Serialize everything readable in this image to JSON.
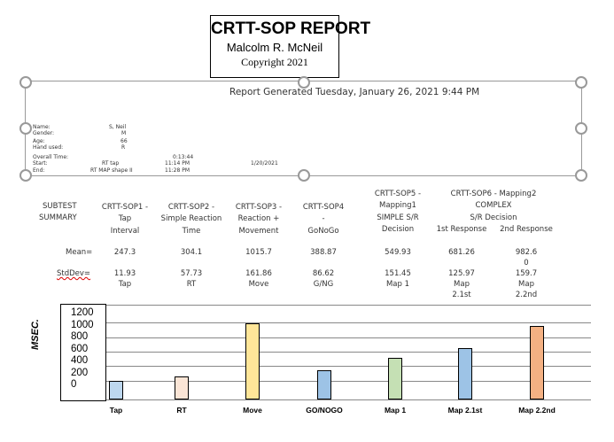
{
  "title": {
    "heading": "CRTT-SOP REPORT",
    "author": "Malcolm R. McNeil",
    "copyright": "Copyright 2021"
  },
  "generated": "Report Generated Tuesday, January 26, 2021 9:44 PM",
  "patient": {
    "name_label": "Name:",
    "name": "S, Neil",
    "gender_label": "Gender:",
    "gender": "M",
    "age_label": "Age:",
    "age": "66",
    "hand_label": "Hand used:",
    "hand": "R",
    "overall_label": "Overall Time:",
    "overall": "0:13:44",
    "start_label": "Start:",
    "start_test": "RT tap",
    "start_time": "11:14 PM",
    "start_date": "1/20/2021",
    "end_label": "End:",
    "end_test": "RT MAP shape II",
    "end_time": "11:28 PM"
  },
  "summary": {
    "label_lines": [
      "SUBTEST",
      "SUMMARY"
    ],
    "mean_label": "Mean=",
    "std_label": "StdDev=",
    "columns": [
      {
        "header": [
          "CRTT-SOP1 -",
          "Tap",
          "Interval"
        ],
        "mean": "247.3",
        "std": "11.93",
        "abbr": "Tap"
      },
      {
        "header": [
          "CRTT-SOP2 -",
          "Simple Reaction",
          "Time"
        ],
        "mean": "304.1",
        "std": "57.73",
        "abbr": "RT"
      },
      {
        "header": [
          "CRTT-SOP3 -",
          "Reaction +",
          "Movement"
        ],
        "mean": "1015.7",
        "std": "161.86",
        "abbr": "Move"
      },
      {
        "header": [
          "CRTT-SOP4",
          "-",
          "GoNoGo"
        ],
        "mean": "388.87",
        "std": "86.62",
        "abbr": "G/NG"
      },
      {
        "header": [
          "CRTT-SOP5 -",
          "Mapping1",
          "SIMPLE       S/R",
          "Decision"
        ],
        "mean": "549.93",
        "std": "151.45",
        "abbr": "Map 1"
      },
      {
        "header": [
          "1st Response"
        ],
        "mean": "681.26",
        "std": "125.97",
        "abbr": "Map",
        "abbr2": "2.1st"
      },
      {
        "header": [
          "2nd Response"
        ],
        "mean": "982.6",
        "mean2": "0",
        "std": "159.7",
        "abbr": "Map",
        "abbr2": "2.2nd"
      }
    ],
    "group_header": [
      "CRTT-SOP6 - Mapping2",
      "COMPLEX",
      "S/R Decision"
    ]
  },
  "chart_data": {
    "type": "bar",
    "ylabel": "MSEC.",
    "categories": [
      "Tap",
      "RT",
      "Move",
      "GO/NOGO",
      "Map 1",
      "Map 2.1st",
      "Map 2.2nd"
    ],
    "values": [
      247.3,
      304.1,
      1015.7,
      388.87,
      549.93,
      681.26,
      982.6
    ],
    "colors": [
      "#bdd7ee",
      "#fbe5d6",
      "#ffe699",
      "#9dc3e6",
      "#c5e0b4",
      "#9dc3e6",
      "#f4b183"
    ],
    "yticks": [
      "1200",
      "1000",
      "800",
      "600",
      "400",
      "200",
      "0"
    ],
    "ylim": [
      0,
      1200
    ],
    "grid": true
  }
}
